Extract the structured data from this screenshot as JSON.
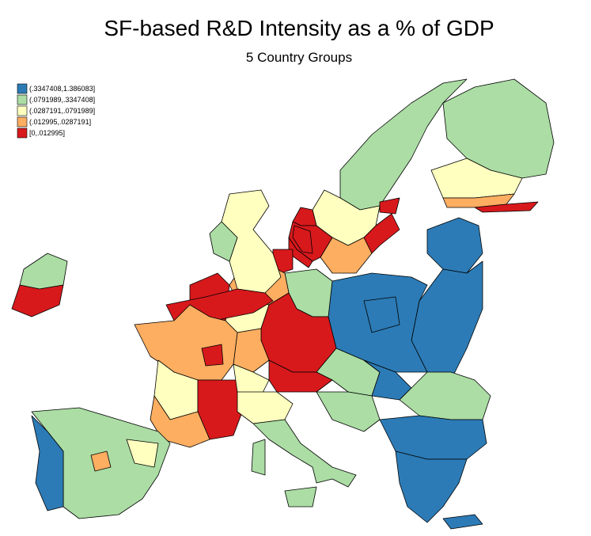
{
  "header": {
    "title": "SF-based R&D Intensity as a % of GDP",
    "subtitle": "5 Country Groups"
  },
  "legend": {
    "items": [
      {
        "label": "(.3347408,1.386083]",
        "color": "#2c7bb6"
      },
      {
        "label": "(.0791989,.3347408]",
        "color": "#abdda4"
      },
      {
        "label": "(.0287191,.0791989]",
        "color": "#ffffbf"
      },
      {
        "label": "(.012995,.0287191]",
        "color": "#fdae61"
      },
      {
        "label": "[0,.012995]",
        "color": "#d7191c"
      }
    ]
  }
}
